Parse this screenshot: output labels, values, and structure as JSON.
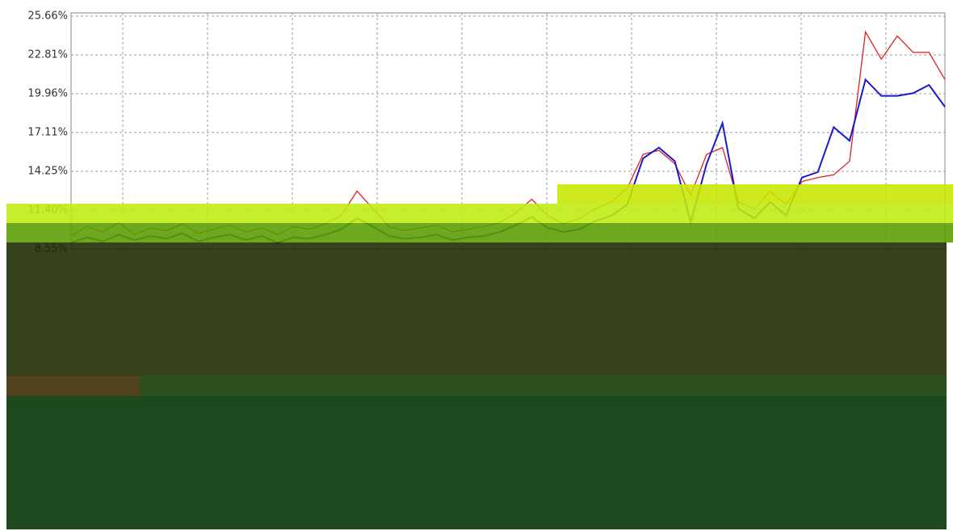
{
  "chart_data": {
    "type": "line",
    "ylim": [
      8.55,
      25.66
    ],
    "yticks": [
      {
        "value": 25.66,
        "label": "25.66%"
      },
      {
        "value": 22.81,
        "label": "22.81%"
      },
      {
        "value": 19.96,
        "label": "19.96%"
      },
      {
        "value": 17.11,
        "label": "17.11%"
      },
      {
        "value": 14.25,
        "label": "14.25%"
      },
      {
        "value": 11.4,
        "label": "11.40%"
      },
      {
        "value": 8.55,
        "label": "8.55%"
      }
    ],
    "grid": true,
    "series": [
      {
        "color": "#e02020",
        "values": [
          9.5,
          10.2,
          9.8,
          10.5,
          9.6,
          10.1,
          9.9,
          10.4,
          9.7,
          10.0,
          10.3,
          9.8,
          10.1,
          9.6,
          10.2,
          10.0,
          10.4,
          11.0,
          12.8,
          11.5,
          10.2,
          9.9,
          10.1,
          10.3,
          9.8,
          10.0,
          10.2,
          10.5,
          11.2,
          12.2,
          11.0,
          10.4,
          10.8,
          11.5,
          12.0,
          13.0,
          15.5,
          15.8,
          14.8,
          12.5,
          15.5,
          16.0,
          12.0,
          11.5,
          12.8,
          11.8,
          13.5,
          13.8,
          14.0,
          15.0,
          24.5,
          22.5,
          24.2,
          23.0,
          23.0,
          21.0
        ]
      },
      {
        "color": "#1a1ac8",
        "values": [
          9.0,
          9.4,
          9.1,
          9.6,
          9.2,
          9.5,
          9.3,
          9.7,
          9.1,
          9.4,
          9.6,
          9.2,
          9.5,
          9.0,
          9.4,
          9.3,
          9.6,
          10.0,
          10.8,
          10.2,
          9.5,
          9.3,
          9.4,
          9.6,
          9.2,
          9.4,
          9.5,
          9.8,
          10.3,
          10.9,
          10.1,
          9.8,
          10.0,
          10.6,
          11.0,
          11.8,
          15.2,
          16.0,
          15.0,
          10.5,
          14.8,
          17.8,
          11.5,
          10.8,
          12.0,
          11.0,
          13.8,
          14.2,
          17.5,
          16.5,
          21.0,
          19.8,
          19.8,
          20.0,
          20.6,
          19.0
        ]
      }
    ]
  }
}
